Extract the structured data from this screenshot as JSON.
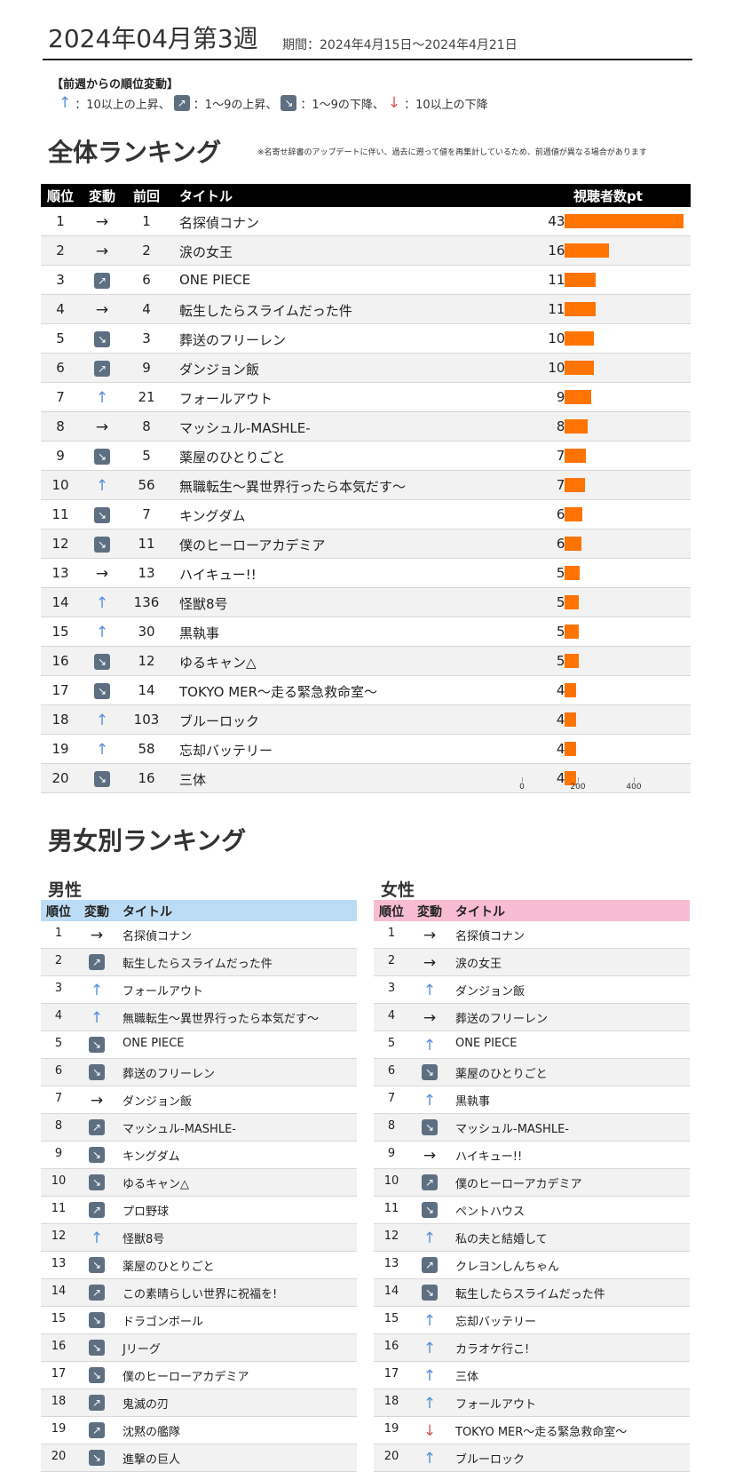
{
  "header": {
    "title": "2024年04月第3週",
    "period": "期間：2024年4月15日〜2024年4月21日"
  },
  "legend": {
    "title": "【前週からの順位変動】",
    "items": [
      {
        "icon": "up-big-arrow-icon",
        "text": "：10以上の上昇、"
      },
      {
        "icon": "up-small-arrow-icon",
        "text": "：1〜9の上昇、"
      },
      {
        "icon": "down-small-arrow-icon",
        "text": "：1〜9の下降、"
      },
      {
        "icon": "down-big-arrow-icon",
        "text": "：10以上の下降"
      }
    ]
  },
  "overall": {
    "section_title": "全体ランキング",
    "note": "※名寄せ辞書のアップデートに伴い、過去に遡って値を再集計しているため、前週値が異なる場合があります",
    "headers": {
      "rank": "順位",
      "move": "変動",
      "prev": "前回",
      "title": "タイトル",
      "value": "視聴者数pt"
    },
    "bar_color": "#ff7400",
    "axis_ticks": [
      "0",
      "200",
      "400"
    ]
  },
  "chart_data": {
    "type": "table",
    "columns": [
      "順位",
      "変動",
      "前回",
      "タイトル",
      "視聴者数pt"
    ],
    "rows": [
      {
        "rank": "1",
        "move": "same",
        "prev": "1",
        "title": "名探偵コナン",
        "value": 438
      },
      {
        "rank": "2",
        "move": "same",
        "prev": "2",
        "title": "涙の女王",
        "value": 162
      },
      {
        "rank": "3",
        "move": "up-small",
        "prev": "6",
        "title": "ONE PIECE",
        "value": 114
      },
      {
        "rank": "4",
        "move": "same",
        "prev": "4",
        "title": "転生したらスライムだった件",
        "value": 113
      },
      {
        "rank": "5",
        "move": "down-small",
        "prev": "3",
        "title": "葬送のフリーレン",
        "value": 109
      },
      {
        "rank": "6",
        "move": "up-small",
        "prev": "9",
        "title": "ダンジョン飯",
        "value": 108
      },
      {
        "rank": "7",
        "move": "up-big",
        "prev": "21",
        "title": "フォールアウト",
        "value": 98
      },
      {
        "rank": "8",
        "move": "same",
        "prev": "8",
        "title": "マッシュル-MASHLE-",
        "value": 86
      },
      {
        "rank": "9",
        "move": "down-small",
        "prev": "5",
        "title": "薬屋のひとりごと",
        "value": 78
      },
      {
        "rank": "10",
        "move": "up-big",
        "prev": "56",
        "title": "無職転生〜異世界行ったら本気だす〜",
        "value": 76
      },
      {
        "rank": "11",
        "move": "down-small",
        "prev": "7",
        "title": "キングダム",
        "value": 65
      },
      {
        "rank": "12",
        "move": "down-small",
        "prev": "11",
        "title": "僕のヒーローアカデミア",
        "value": 61
      },
      {
        "rank": "13",
        "move": "same",
        "prev": "13",
        "title": "ハイキュー!!",
        "value": 55
      },
      {
        "rank": "14",
        "move": "up-big",
        "prev": "136",
        "title": "怪獣8号",
        "value": 53
      },
      {
        "rank": "15",
        "move": "up-big",
        "prev": "30",
        "title": "黒執事",
        "value": 53
      },
      {
        "rank": "16",
        "move": "down-small",
        "prev": "12",
        "title": "ゆるキャン△",
        "value": 52
      },
      {
        "rank": "17",
        "move": "down-small",
        "prev": "14",
        "title": "TOKYO MER〜走る緊急救命室〜",
        "value": 43
      },
      {
        "rank": "18",
        "move": "up-big",
        "prev": "103",
        "title": "ブルーロック",
        "value": 43
      },
      {
        "rank": "19",
        "move": "up-big",
        "prev": "58",
        "title": "忘却バッテリー",
        "value": 42
      },
      {
        "rank": "20",
        "move": "down-small",
        "prev": "16",
        "title": "三体",
        "value": 42
      }
    ],
    "xlim": [
      0,
      438
    ]
  },
  "gender": {
    "section_title": "男女別ランキング",
    "male": {
      "label": "男性",
      "header_color": "#bcdcf5",
      "headers": {
        "rank": "順位",
        "move": "変動",
        "title": "タイトル"
      },
      "rows": [
        {
          "rank": "1",
          "move": "same",
          "title": "名探偵コナン"
        },
        {
          "rank": "2",
          "move": "up-small",
          "title": "転生したらスライムだった件"
        },
        {
          "rank": "3",
          "move": "up-big",
          "title": "フォールアウト"
        },
        {
          "rank": "4",
          "move": "up-big",
          "title": "無職転生〜異世界行ったら本気だす〜"
        },
        {
          "rank": "5",
          "move": "down-small",
          "title": "ONE PIECE"
        },
        {
          "rank": "6",
          "move": "down-small",
          "title": "葬送のフリーレン"
        },
        {
          "rank": "7",
          "move": "same",
          "title": "ダンジョン飯"
        },
        {
          "rank": "8",
          "move": "up-small",
          "title": "マッシュル-MASHLE-"
        },
        {
          "rank": "9",
          "move": "down-small",
          "title": "キングダム"
        },
        {
          "rank": "10",
          "move": "down-small",
          "title": "ゆるキャン△"
        },
        {
          "rank": "11",
          "move": "up-small",
          "title": "プロ野球"
        },
        {
          "rank": "12",
          "move": "up-big",
          "title": "怪獣8号"
        },
        {
          "rank": "13",
          "move": "down-small",
          "title": "薬屋のひとりごと"
        },
        {
          "rank": "14",
          "move": "up-small",
          "title": "この素晴らしい世界に祝福を!"
        },
        {
          "rank": "15",
          "move": "down-small",
          "title": "ドラゴンボール"
        },
        {
          "rank": "16",
          "move": "down-small",
          "title": "Jリーグ"
        },
        {
          "rank": "17",
          "move": "down-small",
          "title": "僕のヒーローアカデミア"
        },
        {
          "rank": "18",
          "move": "up-small",
          "title": "鬼滅の刃"
        },
        {
          "rank": "19",
          "move": "up-small",
          "title": "沈黙の艦隊"
        },
        {
          "rank": "20",
          "move": "down-small",
          "title": "進撃の巨人"
        }
      ]
    },
    "female": {
      "label": "女性",
      "header_color": "#f7bcd2",
      "headers": {
        "rank": "順位",
        "move": "変動",
        "title": "タイトル"
      },
      "rows": [
        {
          "rank": "1",
          "move": "same",
          "title": "名探偵コナン"
        },
        {
          "rank": "2",
          "move": "same",
          "title": "涙の女王"
        },
        {
          "rank": "3",
          "move": "up-big",
          "title": "ダンジョン飯"
        },
        {
          "rank": "4",
          "move": "same",
          "title": "葬送のフリーレン"
        },
        {
          "rank": "5",
          "move": "up-big",
          "title": "ONE PIECE"
        },
        {
          "rank": "6",
          "move": "down-small",
          "title": "薬屋のひとりごと"
        },
        {
          "rank": "7",
          "move": "up-big",
          "title": "黒執事"
        },
        {
          "rank": "8",
          "move": "down-small",
          "title": "マッシュル-MASHLE-"
        },
        {
          "rank": "9",
          "move": "same",
          "title": "ハイキュー!!"
        },
        {
          "rank": "10",
          "move": "up-small",
          "title": "僕のヒーローアカデミア"
        },
        {
          "rank": "11",
          "move": "down-small",
          "title": "ペントハウス"
        },
        {
          "rank": "12",
          "move": "up-big",
          "title": "私の夫と結婚して"
        },
        {
          "rank": "13",
          "move": "up-small",
          "title": "クレヨンしんちゃん"
        },
        {
          "rank": "14",
          "move": "down-small",
          "title": "転生したらスライムだった件"
        },
        {
          "rank": "15",
          "move": "up-big",
          "title": "忘却バッテリー"
        },
        {
          "rank": "16",
          "move": "up-big",
          "title": "カラオケ行こ!"
        },
        {
          "rank": "17",
          "move": "up-big",
          "title": "三体"
        },
        {
          "rank": "18",
          "move": "up-big",
          "title": "フォールアウト"
        },
        {
          "rank": "19",
          "move": "down-big",
          "title": "TOKYO MER〜走る緊急救命室〜"
        },
        {
          "rank": "20",
          "move": "up-big",
          "title": "ブルーロック"
        }
      ]
    }
  }
}
